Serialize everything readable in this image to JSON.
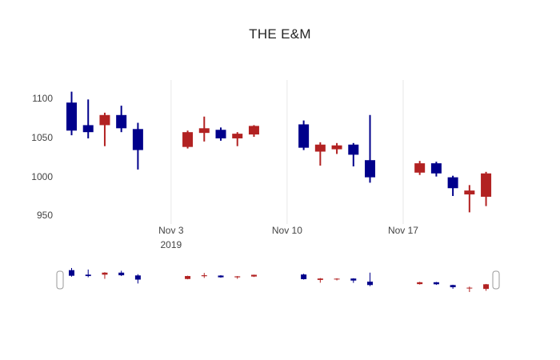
{
  "chart_data": {
    "type": "candlestick",
    "title": "THE E&M",
    "increasing_color": "#00008b",
    "decreasing_color": "#b22222",
    "gridline_color": "#e8e8e8",
    "legend": "none",
    "y_axis": {
      "ticks": [
        950,
        1000,
        1050,
        1100
      ],
      "range": [
        940,
        1125
      ]
    },
    "x_axis": {
      "range": [
        -0.7,
        25.6
      ],
      "ticks": [
        {
          "day": 6,
          "label": "Nov 3",
          "sublabel": "2019"
        },
        {
          "day": 13,
          "label": "Nov 10"
        },
        {
          "day": 20,
          "label": "Nov 17"
        }
      ]
    },
    "rangeslider": {
      "range": [
        950,
        1115
      ]
    },
    "candles": [
      {
        "day": 0,
        "open": 1060,
        "high": 1110,
        "low": 1054,
        "close": 1096
      },
      {
        "day": 1,
        "open": 1058,
        "high": 1100,
        "low": 1050,
        "close": 1067
      },
      {
        "day": 2,
        "open": 1080,
        "high": 1083,
        "low": 1040,
        "close": 1067
      },
      {
        "day": 3,
        "open": 1063,
        "high": 1092,
        "low": 1058,
        "close": 1080
      },
      {
        "day": 4,
        "open": 1035,
        "high": 1070,
        "low": 1010,
        "close": 1062
      },
      {
        "day": 7,
        "open": 1058,
        "high": 1060,
        "low": 1037,
        "close": 1039
      },
      {
        "day": 8,
        "open": 1063,
        "high": 1078,
        "low": 1046,
        "close": 1057
      },
      {
        "day": 9,
        "open": 1050,
        "high": 1064,
        "low": 1047,
        "close": 1061
      },
      {
        "day": 10,
        "open": 1056,
        "high": 1058,
        "low": 1040,
        "close": 1050
      },
      {
        "day": 11,
        "open": 1066,
        "high": 1067,
        "low": 1052,
        "close": 1055
      },
      {
        "day": 14,
        "open": 1038,
        "high": 1073,
        "low": 1035,
        "close": 1068
      },
      {
        "day": 15,
        "open": 1042,
        "high": 1045,
        "low": 1015,
        "close": 1033
      },
      {
        "day": 16,
        "open": 1041,
        "high": 1044,
        "low": 1030,
        "close": 1036
      },
      {
        "day": 17,
        "open": 1029,
        "high": 1044,
        "low": 1014,
        "close": 1042
      },
      {
        "day": 18,
        "open": 1000,
        "high": 1080,
        "low": 993,
        "close": 1022
      },
      {
        "day": 21,
        "open": 1018,
        "high": 1021,
        "low": 1003,
        "close": 1006
      },
      {
        "day": 22,
        "open": 1005,
        "high": 1020,
        "low": 1001,
        "close": 1018
      },
      {
        "day": 23,
        "open": 986,
        "high": 1002,
        "low": 976,
        "close": 1000
      },
      {
        "day": 24,
        "open": 983,
        "high": 990,
        "low": 955,
        "close": 978
      },
      {
        "day": 25,
        "open": 1005,
        "high": 1007,
        "low": 963,
        "close": 975
      }
    ]
  }
}
